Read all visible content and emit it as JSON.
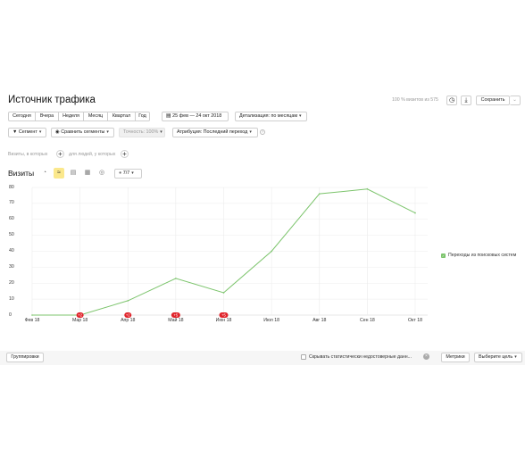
{
  "header": {
    "title": "Источник трафика",
    "visits_info": "100 % визитов из 575",
    "save_label": "Сохранить"
  },
  "periods": [
    "Сегодня",
    "Вчера",
    "Неделя",
    "Месяц",
    "Квартал",
    "Год"
  ],
  "date_range": "25 фев — 24 окт 2018",
  "detail": "Детализация: по месяцам",
  "filters": {
    "segment": "Сегмент",
    "compare": "Сравнить сегменты",
    "accuracy": "Точность: 100%",
    "attribution": "Атрибуция: Последний переход"
  },
  "conditions": {
    "visits_label": "Визиты, в которых",
    "people_label": "для людей, у которых"
  },
  "chart_toolbar": {
    "metric_label": "Визиты",
    "series_count": "7/7"
  },
  "chart_data": {
    "type": "line",
    "title": "Визиты",
    "x": [
      "Фев 18",
      "Мар 18",
      "Апр 18",
      "Май 18",
      "Июн 18",
      "Июл 18",
      "Авг 18",
      "Сен 18",
      "Окт 18"
    ],
    "series": [
      {
        "name": "Переходы из поисковых систем",
        "values": [
          0,
          0,
          9,
          23,
          14,
          40,
          76,
          79,
          64
        ],
        "color": "#7cc46c"
      }
    ],
    "ylim": [
      0,
      80
    ],
    "yticks": [
      0,
      10,
      20,
      30,
      40,
      50,
      60,
      70,
      80
    ],
    "grid": true,
    "legend": "right",
    "annotations": [
      {
        "x": "Мар 18",
        "label": "+2"
      },
      {
        "x": "Апр 18",
        "label": "+2"
      },
      {
        "x": "Май 18",
        "label": "+5"
      },
      {
        "x": "Июн 18",
        "label": "+5"
      }
    ]
  },
  "footer": {
    "groupings": "Группировки",
    "hide_checkbox": "Скрывать статистически недостоверные данн...",
    "metrics": "Метрики",
    "goal": "Выберите цель"
  }
}
